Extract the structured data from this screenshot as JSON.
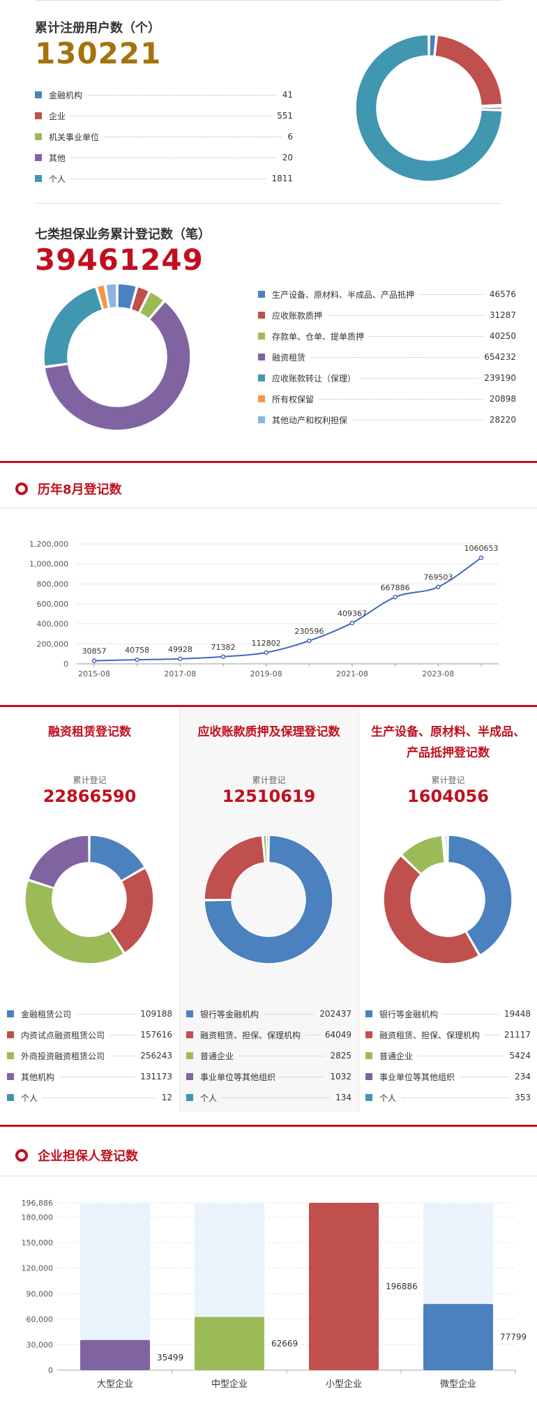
{
  "colors": {
    "accent": "#c0101f",
    "gold": "#a5730b",
    "blue": "#4a81be",
    "red": "#c0504d",
    "green": "#9bbb59",
    "purple": "#8064a2",
    "teal": "#4196b0",
    "orange": "#f79646",
    "light_blue": "#8fb4e3"
  },
  "registered_users": {
    "label": "累计注册用户数（个）",
    "total": "130221",
    "legend": [
      {
        "name": "金融机构",
        "value": "41",
        "num": 41,
        "color": "#4a81be"
      },
      {
        "name": "企业",
        "value": "551",
        "num": 551,
        "color": "#c0504d"
      },
      {
        "name": "机关事业单位",
        "value": "6",
        "num": 6,
        "color": "#9bbb59"
      },
      {
        "name": "其他",
        "value": "20",
        "num": 20,
        "color": "#8064a2"
      },
      {
        "name": "个人",
        "value": "1811",
        "num": 1811,
        "color": "#4196b0"
      }
    ]
  },
  "guarantee_business": {
    "label": "七类担保业务累计登记数（笔）",
    "total": "39461249",
    "legend": [
      {
        "name": "生产设备、原材料、半成品、产品抵押",
        "value": "46576",
        "num": 46576,
        "color": "#4a81be"
      },
      {
        "name": "应收账款质押",
        "value": "31287",
        "num": 31287,
        "color": "#c0504d"
      },
      {
        "name": "存款单、仓单、提单质押",
        "value": "40250",
        "num": 40250,
        "color": "#9bbb59"
      },
      {
        "name": "融资租赁",
        "value": "654232",
        "num": 654232,
        "color": "#8064a2"
      },
      {
        "name": "应收账款转让（保理）",
        "value": "239190",
        "num": 239190,
        "color": "#4196b0"
      },
      {
        "name": "所有权保留",
        "value": "20898",
        "num": 20898,
        "color": "#f79646"
      },
      {
        "name": "其他动产和权利担保",
        "value": "28220",
        "num": 28220,
        "color": "#8fb4e3"
      }
    ]
  },
  "august_section": {
    "title": "历年8月登记数",
    "chart_data": {
      "type": "line",
      "x": [
        "2015-08",
        "2016-08",
        "2017-08",
        "2018-08",
        "2019-08",
        "2020-08",
        "2021-08",
        "2022-08",
        "2023-08",
        "2024-08"
      ],
      "values": [
        30857,
        40758,
        49928,
        71382,
        112802,
        230596,
        409367,
        667886,
        769503,
        1060653
      ],
      "value_labels": [
        "30857",
        "40758",
        "49928",
        "71382",
        "112802",
        "230596",
        "409367",
        "667886",
        "769503",
        "1060653"
      ],
      "x_tick_labels": [
        "2015-08",
        "2017-08",
        "2019-08",
        "2021-08",
        "2023-08"
      ],
      "y_tick_labels": [
        "0",
        "200,000",
        "400,000",
        "600,000",
        "800,000",
        "1,000,000",
        "1,200,000"
      ],
      "ylim": [
        0,
        1200000
      ],
      "line_color": "#4466c4",
      "grid": true
    }
  },
  "columns": [
    {
      "title_lines": [
        "融资租赁登记数"
      ],
      "sub": "累计登记",
      "total": "22866590",
      "shaded": false,
      "legend": [
        {
          "name": "金融租赁公司",
          "value": "109188",
          "num": 109188,
          "color": "#4a81be"
        },
        {
          "name": "内资试点融资租赁公司",
          "value": "157616",
          "num": 157616,
          "color": "#c0504d"
        },
        {
          "name": "外商投资融资租赁公司",
          "value": "256243",
          "num": 256243,
          "color": "#9bbb59"
        },
        {
          "name": "其他机构",
          "value": "131173",
          "num": 131173,
          "color": "#8064a2"
        },
        {
          "name": "个人",
          "value": "12",
          "num": 12,
          "color": "#4196b0"
        }
      ]
    },
    {
      "title_lines": [
        "应收账款质押及保理登记数"
      ],
      "sub": "累计登记",
      "total": "12510619",
      "shaded": true,
      "legend": [
        {
          "name": "银行等金融机构",
          "value": "202437",
          "num": 202437,
          "color": "#4a81be"
        },
        {
          "name": "融资租赁、担保、保理机构",
          "value": "64049",
          "num": 64049,
          "color": "#c0504d"
        },
        {
          "name": "普通企业",
          "value": "2825",
          "num": 2825,
          "color": "#9bbb59"
        },
        {
          "name": "事业单位等其他组织",
          "value": "1032",
          "num": 1032,
          "color": "#8064a2"
        },
        {
          "name": "个人",
          "value": "134",
          "num": 134,
          "color": "#4196b0"
        }
      ]
    },
    {
      "title_lines": [
        "生产设备、原材料、半成品、",
        "产品抵押登记数"
      ],
      "sub": "累计登记",
      "total": "1604056",
      "shaded": false,
      "legend": [
        {
          "name": "银行等金融机构",
          "value": "19448",
          "num": 19448,
          "color": "#4a81be"
        },
        {
          "name": "融资租赁、担保、保理机构",
          "value": "21117",
          "num": 21117,
          "color": "#c0504d"
        },
        {
          "name": "普通企业",
          "value": "5424",
          "num": 5424,
          "color": "#9bbb59"
        },
        {
          "name": "事业单位等其他组织",
          "value": "234",
          "num": 234,
          "color": "#8064a2"
        },
        {
          "name": "个人",
          "value": "353",
          "num": 353,
          "color": "#4196b0"
        }
      ]
    }
  ],
  "enterprise_section": {
    "title": "企业担保人登记数",
    "chart_data": {
      "type": "bar",
      "categories": [
        "大型企业",
        "中型企业",
        "小型企业",
        "微型企业"
      ],
      "values": [
        35499,
        62669,
        196886,
        77799
      ],
      "value_labels": [
        "35499",
        "62669",
        "196886",
        "77799"
      ],
      "colors": [
        "#8064a2",
        "#9bbb59",
        "#c0504d",
        "#4a81be"
      ],
      "background_bar_color": "#eaf3fc",
      "y_tick_labels": [
        "0",
        "30,000",
        "60,000",
        "90,000",
        "120,000",
        "150,000",
        "180,000",
        "196,886"
      ],
      "y_ticks": [
        0,
        30000,
        60000,
        90000,
        120000,
        150000,
        180000,
        196886
      ],
      "ylim": [
        0,
        196886
      ],
      "grid": true
    }
  }
}
